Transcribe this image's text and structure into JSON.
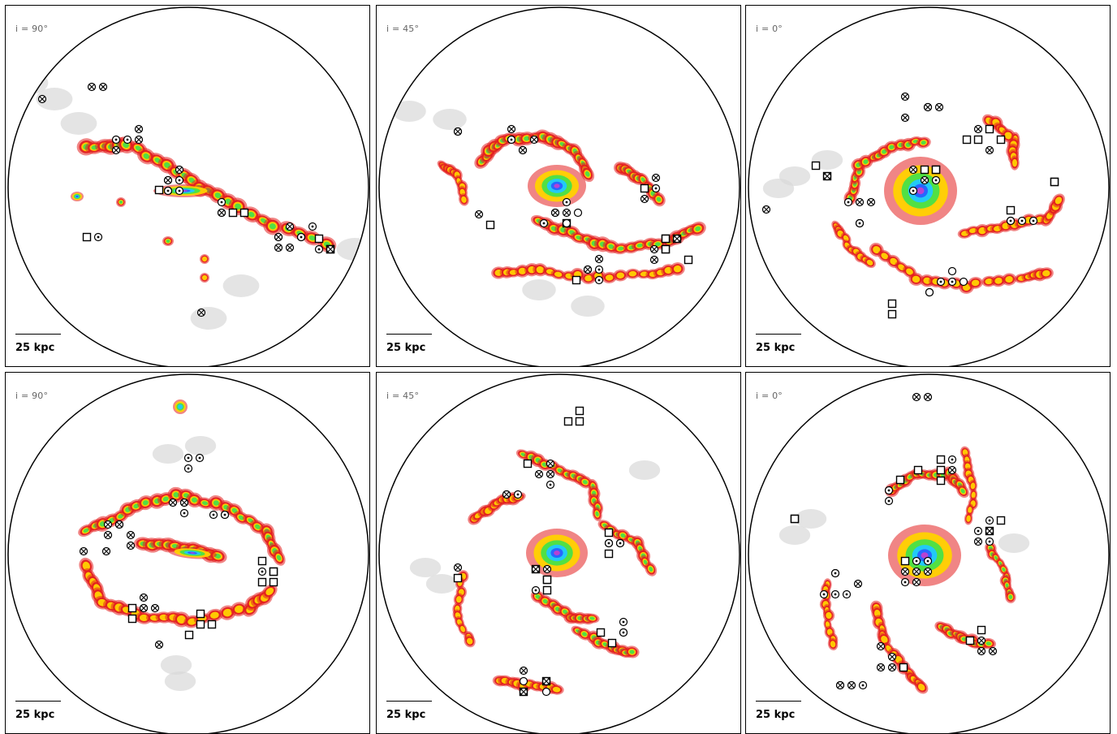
{
  "panels": [
    {
      "label": "i = 90°",
      "scale": "25 kpc",
      "morph": "edge"
    },
    {
      "label": "i = 45°",
      "scale": "25 kpc",
      "morph": "tilted"
    },
    {
      "label": "i =  0°",
      "scale": "25 kpc",
      "morph": "faceon"
    },
    {
      "label": "i = 90°",
      "scale": "25 kpc",
      "morph": "edge2"
    },
    {
      "label": "i = 45°",
      "scale": "25 kpc",
      "morph": "tilted2"
    },
    {
      "label": "i =  0°",
      "scale": "25 kpc",
      "morph": "faceon2"
    }
  ],
  "colors": {
    "frame": "#000000",
    "halo": "#d8d8d8",
    "outer": "#e32020",
    "mid": "#ffd200",
    "green": "#48e048",
    "cyan": "#20c8ff",
    "blue": "#2860ff",
    "core": "#c040d0"
  },
  "marker_types": [
    "circle-x",
    "circle-dot",
    "square",
    "circle"
  ]
}
